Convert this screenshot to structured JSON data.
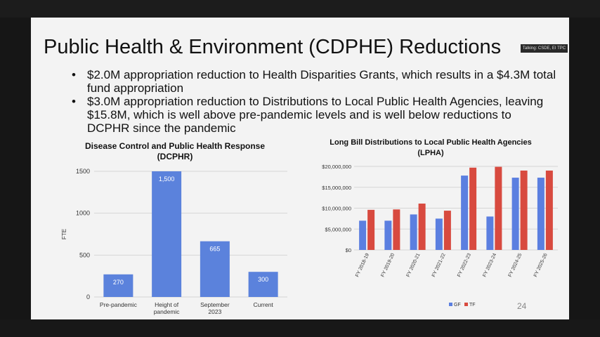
{
  "slide": {
    "title": "Public Health & Environment (CDPHE) Reductions",
    "speaker_badge": "Talking: CSDE, EI TPC",
    "bullets": [
      "$2.0M appropriation reduction to Health Disparities Grants, which results in a $4.3M total fund appropriation",
      "$3.0M appropriation reduction to Distributions to Local Public Health Agencies, leaving $15.8M, which is well above pre-pandemic levels and is well below reductions to DCPHR since the pandemic"
    ],
    "bullet_glyph": "•",
    "page_number": "24"
  },
  "colors": {
    "blue": "#5b7fe0",
    "red": "#d84a3f",
    "bar_left": "#5b82dc"
  },
  "chart_data": [
    {
      "type": "bar",
      "title": "Disease Control and Public Health Response (DCPHR)",
      "xlabel": "",
      "ylabel": "FTE",
      "ylim": [
        0,
        1500
      ],
      "yticks": [
        "0",
        "500",
        "1000",
        "1500"
      ],
      "categories": [
        "Pre-pandemic",
        "Height of pandemic",
        "September 2023",
        "Current"
      ],
      "values": [
        270,
        1500,
        665,
        300
      ],
      "data_labels": [
        "270",
        "1,500",
        "665",
        "300"
      ],
      "grid": true
    },
    {
      "type": "bar",
      "title": "Long Bill Distributions to Local Public Health Agencies (LPHA)",
      "xlabel": "",
      "ylabel": "",
      "ylim": [
        0,
        20000000
      ],
      "yticks": [
        "$0",
        "$5,000,000",
        "$10,000,000",
        "$15,000,000",
        "$20,000,000"
      ],
      "categories": [
        "FY 2018-19",
        "FY 2019-20",
        "FY 2020-21",
        "FY 2021-22",
        "FY 2022-23",
        "FY 2023-24",
        "FY 2024-25",
        "FY 2025-26"
      ],
      "series": [
        {
          "name": "GF",
          "values": [
            7000000,
            7000000,
            8500000,
            7500000,
            17800000,
            8000000,
            17300000,
            17300000
          ]
        },
        {
          "name": "TF",
          "values": [
            9600000,
            9700000,
            11100000,
            9400000,
            19700000,
            19900000,
            19000000,
            19000000
          ]
        }
      ],
      "legend": "bottom",
      "grid": true
    }
  ]
}
